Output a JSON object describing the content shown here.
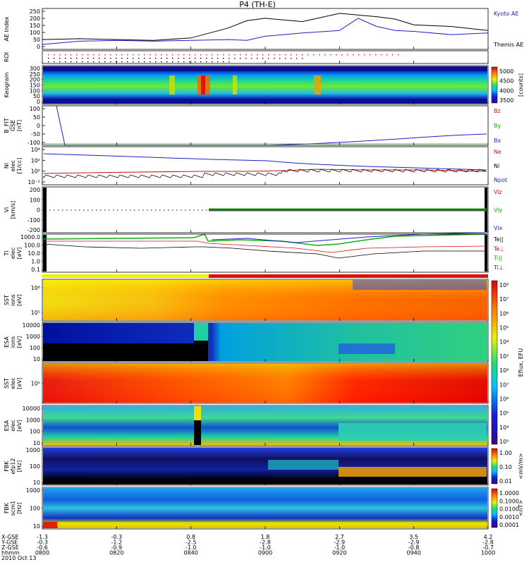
{
  "title": "P4 (TH-E)",
  "footer": {
    "row_labels": [
      "X-GSE",
      "Y-GSE",
      "Z-GSE",
      "hhmm",
      "2010 Oct 13"
    ],
    "columns": [
      {
        "x": "-1.3",
        "y": "-0.3",
        "z": "-0.6",
        "t": "0800"
      },
      {
        "x": "-0.3",
        "y": "-1.2",
        "z": "-0.9",
        "t": "0820"
      },
      {
        "x": "0.8",
        "y": "-2.5",
        "z": "-1.0",
        "t": "0840"
      },
      {
        "x": "1.8",
        "y": "-2.8",
        "z": "-1.0",
        "t": "0900"
      },
      {
        "x": "2.7",
        "y": "-2.9",
        "z": "-1.0",
        "t": "0920"
      },
      {
        "x": "3.5",
        "y": "-2.9",
        "z": "-0.8",
        "t": "0940"
      },
      {
        "x": "4.2",
        "y": "-2.8",
        "z": "-0.7",
        "t": "1000"
      }
    ]
  },
  "colors": {
    "blue": "#1f1fc8",
    "red": "#d01010",
    "green": "#10b010",
    "black": "#000000"
  },
  "chart_data": [
    {
      "type": "line",
      "id": "ae",
      "ylabel": "AE Index",
      "ylim": [
        0,
        250
      ],
      "yticks": [
        "250",
        "200",
        "150",
        "100",
        "50",
        "0"
      ],
      "legend": [
        {
          "name": "Kyoto AE",
          "color": "#1f1fc8"
        },
        {
          "name": "Themis AE",
          "color": "#000000"
        }
      ],
      "x": [
        0,
        10,
        20,
        30,
        40,
        50,
        55,
        60,
        70,
        80,
        85,
        90,
        95,
        100,
        110,
        120
      ],
      "series": [
        {
          "name": "Kyoto AE",
          "color": "#1f1fc8",
          "values": [
            30,
            50,
            55,
            50,
            55,
            60,
            55,
            80,
            100,
            115,
            190,
            140,
            115,
            110,
            90,
            100
          ]
        },
        {
          "name": "Themis AE",
          "color": "#000000",
          "values": [
            60,
            65,
            60,
            55,
            70,
            130,
            175,
            190,
            170,
            220,
            210,
            200,
            185,
            150,
            140,
            115
          ]
        }
      ]
    },
    {
      "type": "dots",
      "id": "roi",
      "ylabel": "ROI"
    },
    {
      "type": "heatmap",
      "id": "keogram",
      "ylabel": "Keogram",
      "ylim": [
        0,
        300
      ],
      "yticks": [
        "300",
        "250",
        "200",
        "150",
        "100",
        "50",
        "0"
      ],
      "colorbar": {
        "label": "[counts]",
        "ticks": [
          "5000",
          "4500",
          "4000",
          "3500"
        ]
      }
    },
    {
      "type": "line",
      "id": "bfit",
      "ylabel": "B_FIT\nGSE\n[nT]",
      "ylim": [
        -100,
        100
      ],
      "yticks": [
        "100",
        "50",
        "0",
        "-50",
        "-100"
      ],
      "legend": [
        {
          "name": "Bz",
          "color": "#d01010"
        },
        {
          "name": "By",
          "color": "#10b010"
        },
        {
          "name": "Bx",
          "color": "#1f1fc8"
        }
      ]
    },
    {
      "type": "line",
      "id": "ni",
      "ylabel": "Ni\nelec\n[1/cc]",
      "yticks": [
        "10⁴",
        "10²",
        "10⁰",
        "10⁻²"
      ],
      "legend": [
        {
          "name": "Ne",
          "color": "#d01010"
        },
        {
          "name": "Ni",
          "color": "#000000"
        },
        {
          "name": "Npot",
          "color": "#1f1fc8"
        }
      ]
    },
    {
      "type": "line",
      "id": "vi",
      "ylabel": "Vi\n[km/s]",
      "ylim": [
        -200,
        200
      ],
      "yticks": [
        "200",
        "100",
        "0",
        "-100",
        "-200"
      ],
      "legend": [
        {
          "name": "Viz",
          "color": "#d01010"
        },
        {
          "name": "Viy",
          "color": "#10b010"
        },
        {
          "name": "Vix",
          "color": "#1f1fc8"
        }
      ]
    },
    {
      "type": "line",
      "id": "ti",
      "ylabel": "Ti\nelec\n[eV]",
      "yticks": [
        "1000.0",
        "100.0",
        "10.0",
        "1.0",
        "0.1"
      ],
      "legend": [
        {
          "name": "Te||",
          "color": "#000000"
        },
        {
          "name": "Te⊥",
          "color": "#d01010"
        },
        {
          "name": "Ti||",
          "color": "#10b010"
        },
        {
          "name": "Ti⊥",
          "color": "#1f1fc8"
        }
      ]
    },
    {
      "type": "heatmap",
      "id": "sst_i",
      "ylabel": "SST\nions\n[eV]",
      "yticks": [
        "10⁶",
        "10⁵"
      ]
    },
    {
      "type": "heatmap",
      "id": "esa_i",
      "ylabel": "ESA\nions\n[eV]",
      "yticks": [
        "10000",
        "1000",
        "100",
        "10"
      ]
    },
    {
      "type": "heatmap",
      "id": "sst_e",
      "ylabel": "SST\nelec\n[eV]",
      "yticks": [
        "10⁵"
      ]
    },
    {
      "type": "heatmap",
      "id": "esa_e",
      "ylabel": "ESA\nelec\n[eV]",
      "yticks": [
        "10000",
        "1000",
        "100",
        "10"
      ]
    },
    {
      "type": "heatmap",
      "id": "fbk1",
      "ylabel": "FBK\nefp12\n[Hz]",
      "yticks": [
        "1000",
        "100",
        "10"
      ],
      "colorbar": {
        "label": "<mV/m>",
        "ticks": [
          "1.00",
          "0.10",
          "0.01"
        ]
      }
    },
    {
      "type": "heatmap",
      "id": "fbk2",
      "ylabel": "FBK\nscm1\n[Hz]",
      "yticks": [
        "1000",
        "100",
        "10"
      ],
      "colorbar": {
        "label": "<nT>",
        "ticks": [
          "1.0000",
          "0.1000",
          "0.0100",
          "0.0010",
          "0.0001"
        ]
      }
    }
  ],
  "eflux_colorbar": {
    "label": "Eflux, EFU",
    "ticks": [
      "10⁸",
      "10⁷",
      "10⁶",
      "10⁵",
      "10⁴",
      "10³"
    ]
  }
}
